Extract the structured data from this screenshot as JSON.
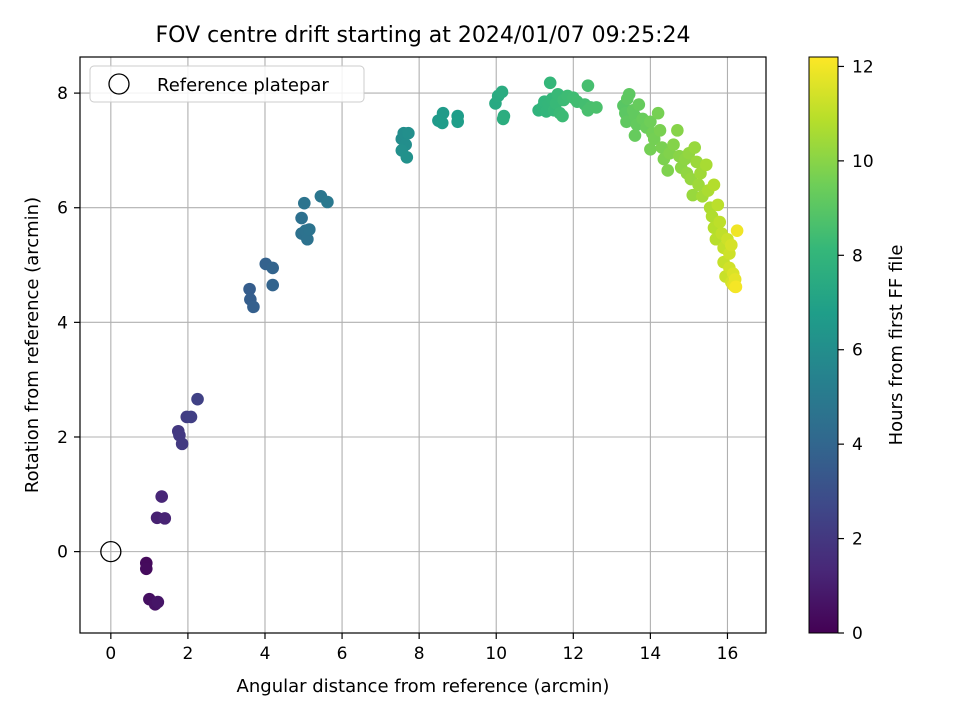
{
  "chart_data": {
    "type": "scatter",
    "title": "FOV centre drift starting at 2024/01/07 09:25:24",
    "xlabel": "Angular distance from reference (arcmin)",
    "ylabel": "Rotation from reference (arcmin)",
    "xlim": [
      -0.8,
      17.0
    ],
    "ylim": [
      -1.42,
      8.63
    ],
    "xticks": [
      "0",
      "2",
      "4",
      "6",
      "8",
      "10",
      "12",
      "14",
      "16"
    ],
    "yticks": [
      "0",
      "2",
      "4",
      "6",
      "8"
    ],
    "grid": true,
    "legend": {
      "placement": "top-left",
      "entries": [
        "Reference platepar"
      ]
    },
    "reference_point": {
      "x": 0,
      "y": 0
    },
    "colorbar": {
      "label": "Hours from first FF file",
      "range": [
        0,
        12.2
      ],
      "ticks": [
        "0",
        "2",
        "4",
        "6",
        "8",
        "10",
        "12"
      ],
      "colormap": "viridis",
      "colors": [
        "#440154",
        "#482878",
        "#3e4989",
        "#31688e",
        "#26828e",
        "#1f9e89",
        "#35b779",
        "#6ece58",
        "#b5de2b",
        "#fde725"
      ]
    },
    "series": [
      {
        "points": [
          {
            "x": 0.92,
            "y": -0.2,
            "t": 0.3
          },
          {
            "x": 0.92,
            "y": -0.3,
            "t": 0.35
          },
          {
            "x": 1.0,
            "y": -0.83,
            "t": 0.5
          },
          {
            "x": 1.15,
            "y": -0.92,
            "t": 0.6
          },
          {
            "x": 1.22,
            "y": -0.88,
            "t": 0.7
          },
          {
            "x": 1.2,
            "y": 0.59,
            "t": 1.1
          },
          {
            "x": 1.4,
            "y": 0.58,
            "t": 1.2
          },
          {
            "x": 1.32,
            "y": 0.96,
            "t": 1.3
          },
          {
            "x": 1.75,
            "y": 2.1,
            "t": 2.0
          },
          {
            "x": 1.78,
            "y": 2.03,
            "t": 2.05
          },
          {
            "x": 1.85,
            "y": 1.88,
            "t": 2.1
          },
          {
            "x": 1.97,
            "y": 2.35,
            "t": 2.2
          },
          {
            "x": 2.08,
            "y": 2.35,
            "t": 2.3
          },
          {
            "x": 2.25,
            "y": 2.66,
            "t": 2.4
          },
          {
            "x": 3.6,
            "y": 4.58,
            "t": 3.6
          },
          {
            "x": 3.62,
            "y": 4.4,
            "t": 3.65
          },
          {
            "x": 3.7,
            "y": 4.27,
            "t": 3.7
          },
          {
            "x": 4.02,
            "y": 5.02,
            "t": 3.8
          },
          {
            "x": 4.2,
            "y": 4.95,
            "t": 3.9
          },
          {
            "x": 4.2,
            "y": 4.65,
            "t": 3.9
          },
          {
            "x": 4.95,
            "y": 5.82,
            "t": 4.5
          },
          {
            "x": 4.95,
            "y": 5.55,
            "t": 4.55
          },
          {
            "x": 5.05,
            "y": 5.6,
            "t": 4.6
          },
          {
            "x": 5.1,
            "y": 5.45,
            "t": 4.6
          },
          {
            "x": 5.15,
            "y": 5.62,
            "t": 4.65
          },
          {
            "x": 5.02,
            "y": 6.08,
            "t": 4.7
          },
          {
            "x": 5.45,
            "y": 6.2,
            "t": 4.8
          },
          {
            "x": 5.62,
            "y": 6.1,
            "t": 4.9
          },
          {
            "x": 7.55,
            "y": 7.2,
            "t": 5.9
          },
          {
            "x": 7.6,
            "y": 7.3,
            "t": 5.95
          },
          {
            "x": 7.65,
            "y": 7.1,
            "t": 6.0
          },
          {
            "x": 7.72,
            "y": 7.3,
            "t": 6.05
          },
          {
            "x": 7.55,
            "y": 7.0,
            "t": 6.1
          },
          {
            "x": 7.68,
            "y": 6.88,
            "t": 6.15
          },
          {
            "x": 8.5,
            "y": 7.52,
            "t": 6.6
          },
          {
            "x": 8.62,
            "y": 7.65,
            "t": 6.65
          },
          {
            "x": 8.6,
            "y": 7.48,
            "t": 6.7
          },
          {
            "x": 9.0,
            "y": 7.6,
            "t": 6.75
          },
          {
            "x": 9.0,
            "y": 7.5,
            "t": 6.8
          },
          {
            "x": 9.98,
            "y": 7.82,
            "t": 7.4
          },
          {
            "x": 10.05,
            "y": 7.95,
            "t": 7.45
          },
          {
            "x": 10.15,
            "y": 8.02,
            "t": 7.5
          },
          {
            "x": 10.2,
            "y": 7.6,
            "t": 7.55
          },
          {
            "x": 10.18,
            "y": 7.55,
            "t": 7.6
          },
          {
            "x": 11.1,
            "y": 7.7,
            "t": 7.9
          },
          {
            "x": 11.2,
            "y": 7.75,
            "t": 7.95
          },
          {
            "x": 11.25,
            "y": 7.85,
            "t": 8.0
          },
          {
            "x": 11.3,
            "y": 7.68,
            "t": 8.0
          },
          {
            "x": 11.35,
            "y": 7.8,
            "t": 8.05
          },
          {
            "x": 11.4,
            "y": 8.18,
            "t": 8.1
          },
          {
            "x": 11.45,
            "y": 7.9,
            "t": 8.1
          },
          {
            "x": 11.5,
            "y": 7.7,
            "t": 8.15
          },
          {
            "x": 11.55,
            "y": 7.82,
            "t": 8.2
          },
          {
            "x": 11.6,
            "y": 7.98,
            "t": 8.2
          },
          {
            "x": 11.65,
            "y": 7.65,
            "t": 8.25
          },
          {
            "x": 11.72,
            "y": 7.6,
            "t": 8.3
          },
          {
            "x": 11.75,
            "y": 7.88,
            "t": 8.3
          },
          {
            "x": 11.85,
            "y": 7.95,
            "t": 8.35
          },
          {
            "x": 12.0,
            "y": 7.92,
            "t": 8.4
          },
          {
            "x": 12.1,
            "y": 7.85,
            "t": 8.45
          },
          {
            "x": 12.3,
            "y": 7.8,
            "t": 8.5
          },
          {
            "x": 12.38,
            "y": 8.13,
            "t": 8.55
          },
          {
            "x": 12.45,
            "y": 7.75,
            "t": 8.6
          },
          {
            "x": 12.38,
            "y": 7.7,
            "t": 8.6
          },
          {
            "x": 12.6,
            "y": 7.75,
            "t": 8.65
          },
          {
            "x": 13.3,
            "y": 7.78,
            "t": 9.0
          },
          {
            "x": 13.35,
            "y": 7.65,
            "t": 9.05
          },
          {
            "x": 13.4,
            "y": 7.9,
            "t": 9.1
          },
          {
            "x": 13.45,
            "y": 7.98,
            "t": 9.1
          },
          {
            "x": 13.38,
            "y": 7.5,
            "t": 9.15
          },
          {
            "x": 13.55,
            "y": 7.7,
            "t": 9.2
          },
          {
            "x": 13.6,
            "y": 7.6,
            "t": 9.2
          },
          {
            "x": 13.65,
            "y": 7.45,
            "t": 9.25
          },
          {
            "x": 13.7,
            "y": 7.8,
            "t": 9.3
          },
          {
            "x": 13.6,
            "y": 7.26,
            "t": 9.3
          },
          {
            "x": 13.8,
            "y": 7.55,
            "t": 9.35
          },
          {
            "x": 13.9,
            "y": 7.4,
            "t": 9.4
          },
          {
            "x": 14.0,
            "y": 7.5,
            "t": 9.5
          },
          {
            "x": 14.05,
            "y": 7.3,
            "t": 9.55
          },
          {
            "x": 14.1,
            "y": 7.2,
            "t": 9.6
          },
          {
            "x": 14.0,
            "y": 7.02,
            "t": 9.6
          },
          {
            "x": 14.2,
            "y": 7.65,
            "t": 9.65
          },
          {
            "x": 14.25,
            "y": 7.35,
            "t": 9.7
          },
          {
            "x": 14.3,
            "y": 7.05,
            "t": 9.7
          },
          {
            "x": 14.35,
            "y": 6.85,
            "t": 9.75
          },
          {
            "x": 14.45,
            "y": 6.65,
            "t": 9.8
          },
          {
            "x": 14.5,
            "y": 6.95,
            "t": 9.85
          },
          {
            "x": 14.6,
            "y": 7.1,
            "t": 9.9
          },
          {
            "x": 14.7,
            "y": 7.35,
            "t": 9.95
          },
          {
            "x": 14.75,
            "y": 6.9,
            "t": 10.0
          },
          {
            "x": 14.8,
            "y": 6.7,
            "t": 10.05
          },
          {
            "x": 14.9,
            "y": 6.85,
            "t": 10.1
          },
          {
            "x": 14.95,
            "y": 6.6,
            "t": 10.15
          },
          {
            "x": 15.0,
            "y": 6.95,
            "t": 10.2
          },
          {
            "x": 15.05,
            "y": 6.5,
            "t": 10.25
          },
          {
            "x": 15.1,
            "y": 6.22,
            "t": 10.3
          },
          {
            "x": 15.15,
            "y": 7.05,
            "t": 10.3
          },
          {
            "x": 15.2,
            "y": 6.8,
            "t": 10.35
          },
          {
            "x": 15.25,
            "y": 6.4,
            "t": 10.4
          },
          {
            "x": 15.3,
            "y": 6.6,
            "t": 10.45
          },
          {
            "x": 15.35,
            "y": 6.2,
            "t": 10.5
          },
          {
            "x": 15.45,
            "y": 6.75,
            "t": 10.6
          },
          {
            "x": 15.5,
            "y": 6.3,
            "t": 10.65
          },
          {
            "x": 15.55,
            "y": 6.0,
            "t": 10.7
          },
          {
            "x": 15.6,
            "y": 5.85,
            "t": 10.75
          },
          {
            "x": 15.65,
            "y": 6.4,
            "t": 10.8
          },
          {
            "x": 15.65,
            "y": 5.65,
            "t": 10.85
          },
          {
            "x": 15.7,
            "y": 5.45,
            "t": 10.9
          },
          {
            "x": 15.75,
            "y": 6.05,
            "t": 10.95
          },
          {
            "x": 15.8,
            "y": 5.75,
            "t": 11.0
          },
          {
            "x": 15.85,
            "y": 5.55,
            "t": 11.05
          },
          {
            "x": 15.9,
            "y": 5.3,
            "t": 11.1
          },
          {
            "x": 15.9,
            "y": 5.05,
            "t": 11.15
          },
          {
            "x": 15.95,
            "y": 4.8,
            "t": 11.2
          },
          {
            "x": 16.0,
            "y": 5.45,
            "t": 11.25
          },
          {
            "x": 16.05,
            "y": 5.2,
            "t": 11.3
          },
          {
            "x": 16.05,
            "y": 4.95,
            "t": 11.35
          },
          {
            "x": 16.1,
            "y": 4.7,
            "t": 11.4
          },
          {
            "x": 16.1,
            "y": 5.35,
            "t": 11.45
          },
          {
            "x": 16.15,
            "y": 4.85,
            "t": 11.55
          },
          {
            "x": 16.15,
            "y": 4.65,
            "t": 11.65
          },
          {
            "x": 16.2,
            "y": 4.75,
            "t": 11.75
          },
          {
            "x": 16.2,
            "y": 4.62,
            "t": 11.85
          },
          {
            "x": 16.25,
            "y": 5.6,
            "t": 11.95
          },
          {
            "x": 16.22,
            "y": 4.62,
            "t": 12.05
          }
        ]
      }
    ]
  }
}
